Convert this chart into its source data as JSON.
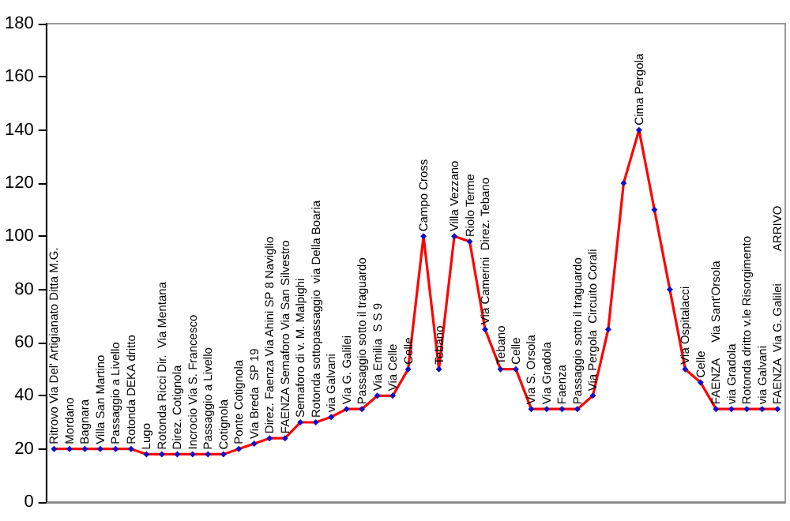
{
  "chart_data": {
    "type": "line",
    "categories": [
      "Ritrovo Via Del' Artigianato Ditta M.G.",
      "Mordano",
      "Bagnara",
      "Villa San Martino",
      "Passaggio a Livello",
      "Rotonda DEKA dritto",
      "Lugo",
      "Rotonda Ricci Dir.  Via Mentana",
      "Direz. Cotignola",
      "Incrocio Via S. Francesco",
      "Passaggio a Livello",
      "Cotignola",
      "Ponte Cotignola",
      "Via Breda  SP 19",
      "Direz. Faenza Via Ahini SP 8 Naviglio",
      "FAENZA Semaforo Via San Silvestro",
      "Semaforo di v. M. Malpighi",
      "Rotonda sottopassaggio  via Della Boaria",
      "via Galvani",
      "Via G. Galilei",
      "Passaggio sotto il traguardo",
      "Via Emilia  S S 9",
      "Via Celle",
      "Celle",
      "Campo Cross",
      "Tebano",
      "Villa Vezzano",
      "Riolo Terme",
      "Via Camerini  Direz. Tebano",
      "Tebano",
      "Celle",
      "Via S. Orsola",
      "Via Gradola",
      "Faenza",
      "Passaggio sotto il traguardo",
      "Via Pergola  Circuito Corali",
      null,
      null,
      "Cima Pergola",
      null,
      null,
      "Via Ospitalacci",
      "Celle",
      "FAENZA     Via Sant'Orsola",
      "via Gradola",
      "Rotonda dritto v.le Risorgimento",
      "via Galvani",
      "FAENZA  Via G. Galilei          ARRIVO"
    ],
    "series": [
      {
        "color": "#ff0000",
        "values": [
          20,
          20,
          20,
          20,
          20,
          20,
          18,
          18,
          18,
          18,
          18,
          18,
          20,
          22,
          24,
          24,
          30,
          30,
          32,
          35,
          35,
          40,
          40,
          50,
          100,
          50,
          100,
          98,
          65,
          50,
          50,
          35,
          35,
          35,
          35,
          40,
          65,
          120,
          140,
          110,
          80,
          50,
          45,
          35,
          35,
          35,
          35,
          35
        ]
      }
    ],
    "ylim": [
      0,
      180
    ],
    "yticks": [
      0,
      20,
      40,
      60,
      80,
      100,
      120,
      140,
      160,
      180
    ],
    "grid": false,
    "tick_labels": "y",
    "marker": "diamond",
    "line_style": "solid"
  }
}
